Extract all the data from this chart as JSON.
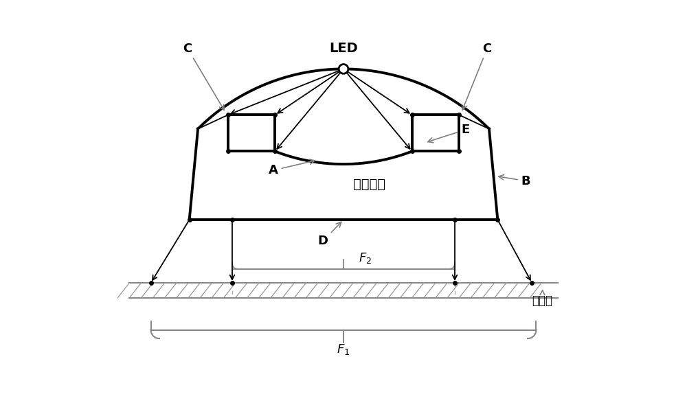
{
  "bg_color": "#ffffff",
  "line_color": "#000000",
  "arrow_color": "#808080",
  "thick_lw": 2.8,
  "thin_lw": 1.3,
  "gray_lw": 1.2,
  "led_label": "LED",
  "label_A": "A",
  "label_B": "B",
  "label_C_left": "C",
  "label_C_right": "C",
  "label_D": "D",
  "label_E": "E",
  "label_F1": "$F_1$",
  "label_F2": "$F_2$",
  "label_lens": "照明透镜",
  "label_target": "目标面",
  "figsize": [
    10.0,
    6.06
  ],
  "dpi": 100
}
